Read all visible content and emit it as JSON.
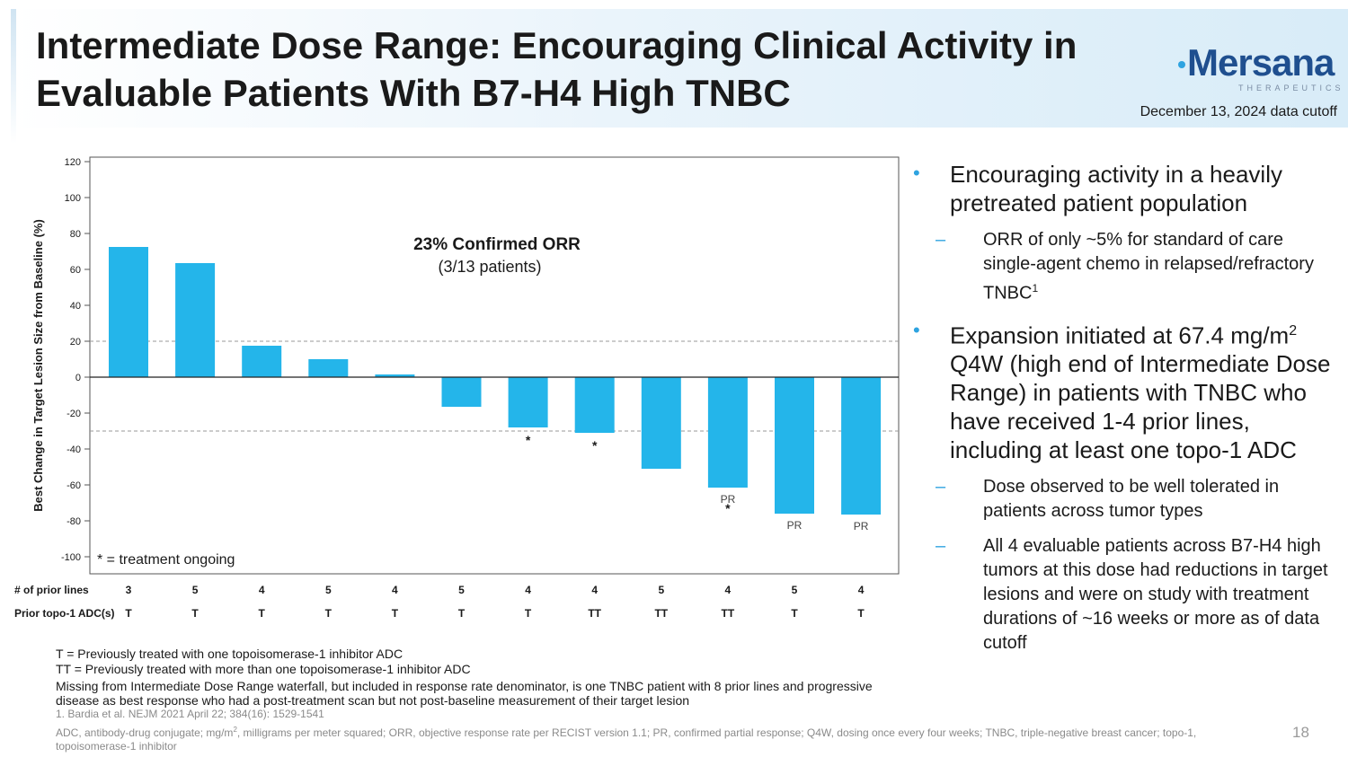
{
  "slide": {
    "title": "Intermediate Dose Range: Encouraging Clinical Activity in Evaluable Patients With B7-H4 High TNBC",
    "logo_text": "Mersana",
    "logo_subtext": "THERAPEUTICS",
    "date_note": "December 13, 2024 data cutoff",
    "page_number": "18",
    "colors": {
      "bar": "#24b5ea",
      "accent": "#2ea3e0",
      "logo": "#1f4f8f"
    }
  },
  "chart_data": {
    "type": "bar",
    "ylabel": "Best Change in Target Lesion Size from Baseline (%)",
    "ylim": [
      -100,
      120
    ],
    "yticks": [
      120,
      100,
      80,
      60,
      40,
      20,
      0,
      -20,
      -40,
      -60,
      -80,
      -100
    ],
    "reference_lines": [
      20,
      -30
    ],
    "values": [
      72.5,
      63.5,
      17.5,
      10,
      1.5,
      -16.5,
      -28,
      -31,
      -51,
      -61.5,
      -76,
      -76.5
    ],
    "bar_labels": [
      "",
      "",
      "",
      "",
      "",
      "",
      "*",
      "*",
      "",
      "PR\n*",
      "PR",
      "PR"
    ],
    "annotation_title": "23% Confirmed ORR",
    "annotation_subtitle": "(3/13 patients)",
    "legend_note": "* = treatment ongoing",
    "grid": false,
    "prior_lines_label": "# of prior lines",
    "prior_lines": [
      "3",
      "5",
      "4",
      "5",
      "4",
      "5",
      "4",
      "4",
      "5",
      "4",
      "5",
      "4"
    ],
    "prior_adc_label": "Prior topo-1 ADC(s)",
    "prior_adc": [
      "T",
      "T",
      "T",
      "T",
      "T",
      "T",
      "T",
      "TT",
      "TT",
      "TT",
      "T",
      "T"
    ]
  },
  "legend": {
    "t_def": "T = Previously treated with one topoisomerase-1 inhibitor ADC",
    "tt_def": "TT = Previously treated with more than one topoisomerase-1 inhibitor ADC",
    "missing_note": "Missing from Intermediate Dose Range waterfall, but included in response rate denominator, is one TNBC patient with 8 prior lines and progressive disease as best response who had a post-treatment scan but not post-baseline measurement of their target lesion"
  },
  "footnotes": {
    "ref": "1. Bardia et al. NEJM 2021 April 22; 384(16): 1529-1541",
    "abbrev_pre": "ADC, antibody-drug conjugate; mg/m",
    "abbrev_sup": "2",
    "abbrev_post": ", milligrams per meter squared; ORR, objective response rate per RECIST version 1.1; PR, confirmed partial response; Q4W, dosing once every four weeks; TNBC, triple-negative breast cancer; topo-1, topoisomerase-1 inhibitor"
  },
  "bullets": {
    "b1": "Encouraging activity in a heavily pretreated patient population",
    "b1_sub1": "ORR of only ~5% for standard of care single-agent chemo in relapsed/refractory TNBC",
    "b1_sub1_sup": "1",
    "b2_pre": "Expansion initiated at 67.4 mg/m",
    "b2_sup": "2",
    "b2_post": " Q4W (high end of Intermediate Dose Range) in patients with TNBC who have received 1-4 prior lines, including at least one topo-1 ADC",
    "b2_sub1": "Dose observed to be well tolerated in patients across tumor types",
    "b2_sub2": "All 4 evaluable patients across B7-H4 high tumors at this dose had reductions in target lesions and were on study with treatment durations of ~16 weeks or more as of data cutoff"
  }
}
